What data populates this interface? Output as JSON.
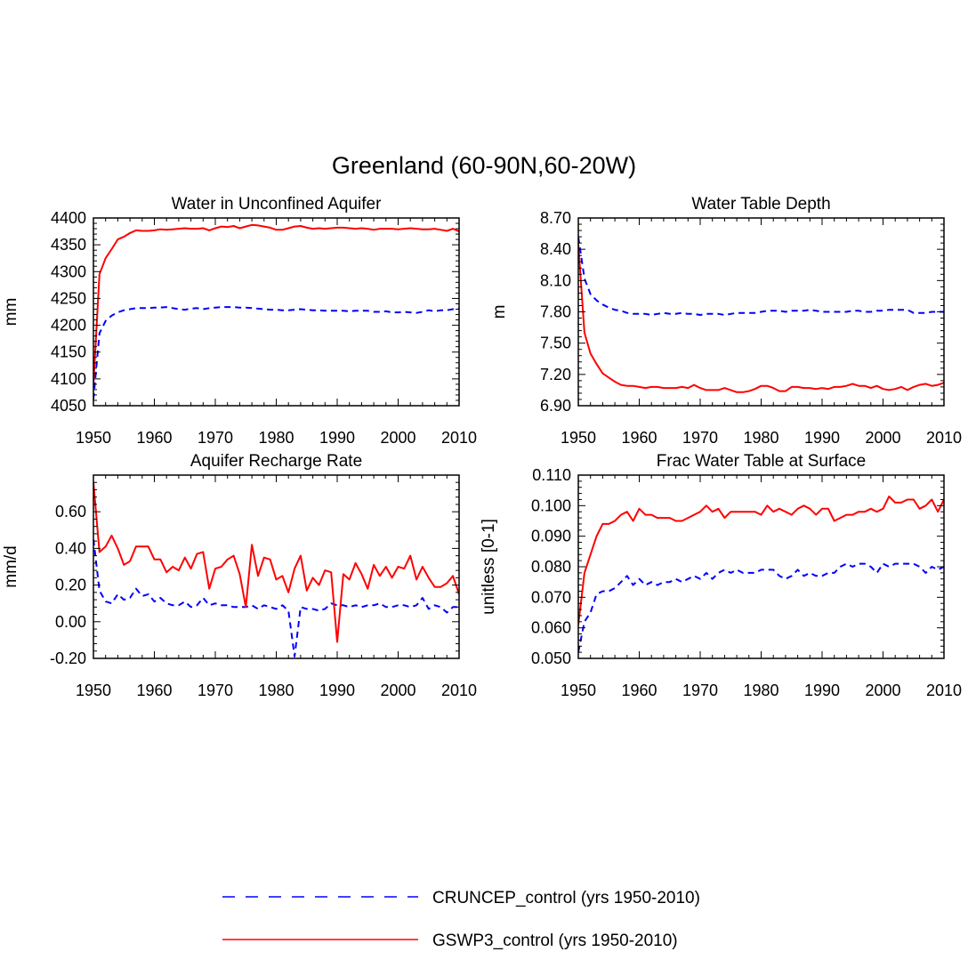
{
  "figure": {
    "title": "Greenland (60-90N,60-20W)"
  },
  "legend": {
    "placement": "bottom-center",
    "entries": [
      {
        "name": "CRUNCEP_control (yrs 1950-2010)",
        "color": "#0000ff",
        "style": "dashed"
      },
      {
        "name": "GSWP3_control (yrs 1950-2010)",
        "color": "#ff0000",
        "style": "solid"
      }
    ]
  },
  "chart_data": [
    {
      "type": "line",
      "title": "Water in Unconfined Aquifer",
      "xlabel": "",
      "ylabel": "mm",
      "xlim": [
        1950,
        2010
      ],
      "ylim": [
        4050,
        4400
      ],
      "xticks": [
        1950,
        1960,
        1970,
        1980,
        1990,
        2000,
        2010
      ],
      "yticks": [
        4050,
        4100,
        4150,
        4200,
        4250,
        4300,
        4350,
        4400
      ],
      "ytick_labels": [
        "4050",
        "4100",
        "4150",
        "4200",
        "4250",
        "4300",
        "4350",
        "4400"
      ],
      "series": [
        {
          "name": "CRUNCEP_control (yrs 1950-2010)",
          "color": "#0000ff",
          "style": "dashed",
          "values": [
            4062,
            4185,
            4208,
            4218,
            4224,
            4228,
            4230,
            4232,
            4232,
            4232,
            4233,
            4233,
            4234,
            4232,
            4230,
            4229,
            4231,
            4232,
            4230,
            4232,
            4233,
            4234,
            4234,
            4234,
            4233,
            4233,
            4232,
            4231,
            4230,
            4229,
            4229,
            4228,
            4228,
            4229,
            4230,
            4229,
            4228,
            4228,
            4227,
            4227,
            4227,
            4227,
            4226,
            4227,
            4227,
            4227,
            4225,
            4225,
            4226,
            4224,
            4224,
            4225,
            4224,
            4223,
            4225,
            4228,
            4226,
            4228,
            4228,
            4230,
            4231
          ]
        },
        {
          "name": "GSWP3_control (yrs 1950-2010)",
          "color": "#ff0000",
          "style": "solid",
          "values": [
            4090,
            4295,
            4325,
            4342,
            4360,
            4365,
            4372,
            4377,
            4376,
            4376,
            4377,
            4379,
            4378,
            4379,
            4380,
            4381,
            4380,
            4380,
            4381,
            4377,
            4381,
            4384,
            4383,
            4385,
            4381,
            4384,
            4387,
            4386,
            4384,
            4382,
            4378,
            4378,
            4381,
            4384,
            4385,
            4382,
            4380,
            4381,
            4380,
            4381,
            4382,
            4382,
            4381,
            4380,
            4381,
            4380,
            4378,
            4380,
            4380,
            4380,
            4379,
            4380,
            4381,
            4380,
            4379,
            4379,
            4380,
            4378,
            4376,
            4380,
            4375
          ]
        }
      ]
    },
    {
      "type": "line",
      "title": "Water Table Depth",
      "xlabel": "",
      "ylabel": "m",
      "xlim": [
        1950,
        2010
      ],
      "ylim": [
        6.9,
        8.7
      ],
      "xticks": [
        1950,
        1960,
        1970,
        1980,
        1990,
        2000,
        2010
      ],
      "yticks": [
        6.9,
        7.2,
        7.5,
        7.8,
        8.1,
        8.4,
        8.7
      ],
      "ytick_labels": [
        "6.90",
        "7.20",
        "7.50",
        "7.80",
        "8.10",
        "8.40",
        "8.70"
      ],
      "series": [
        {
          "name": "CRUNCEP_control (yrs 1950-2010)",
          "color": "#0000ff",
          "style": "dashed",
          "values": [
            8.52,
            8.12,
            7.97,
            7.91,
            7.87,
            7.84,
            7.82,
            7.81,
            7.79,
            7.78,
            7.78,
            7.78,
            7.77,
            7.78,
            7.79,
            7.78,
            7.78,
            7.79,
            7.78,
            7.78,
            7.77,
            7.78,
            7.78,
            7.78,
            7.77,
            7.78,
            7.79,
            7.79,
            7.79,
            7.79,
            7.8,
            7.81,
            7.81,
            7.81,
            7.8,
            7.81,
            7.81,
            7.81,
            7.82,
            7.81,
            7.8,
            7.8,
            7.8,
            7.8,
            7.8,
            7.81,
            7.81,
            7.8,
            7.8,
            7.81,
            7.81,
            7.82,
            7.82,
            7.82,
            7.82,
            7.79,
            7.79,
            7.79,
            7.8,
            7.8,
            7.8
          ]
        },
        {
          "name": "GSWP3_control (yrs 1950-2010)",
          "color": "#ff0000",
          "style": "solid",
          "values": [
            8.45,
            7.6,
            7.4,
            7.3,
            7.21,
            7.17,
            7.13,
            7.1,
            7.09,
            7.09,
            7.08,
            7.07,
            7.08,
            7.08,
            7.07,
            7.07,
            7.07,
            7.08,
            7.07,
            7.1,
            7.07,
            7.05,
            7.05,
            7.05,
            7.07,
            7.05,
            7.03,
            7.03,
            7.04,
            7.06,
            7.09,
            7.09,
            7.07,
            7.04,
            7.04,
            7.08,
            7.08,
            7.07,
            7.07,
            7.06,
            7.07,
            7.06,
            7.08,
            7.08,
            7.09,
            7.11,
            7.09,
            7.09,
            7.07,
            7.09,
            7.06,
            7.05,
            7.06,
            7.08,
            7.05,
            7.08,
            7.1,
            7.11,
            7.09,
            7.1,
            7.12
          ]
        }
      ]
    },
    {
      "type": "line",
      "title": "Aquifer Recharge Rate",
      "xlabel": "",
      "ylabel": "mm/d",
      "xlim": [
        1950,
        2010
      ],
      "ylim": [
        -0.2,
        0.8
      ],
      "xticks": [
        1950,
        1960,
        1970,
        1980,
        1990,
        2000,
        2010
      ],
      "yticks": [
        -0.2,
        0.0,
        0.2,
        0.4,
        0.6
      ],
      "ytick_labels": [
        "-0.20",
        "0.00",
        "0.20",
        "0.40",
        "0.60"
      ],
      "series": [
        {
          "name": "CRUNCEP_control (yrs 1950-2010)",
          "color": "#0000ff",
          "style": "dashed",
          "values": [
            0.45,
            0.17,
            0.11,
            0.1,
            0.15,
            0.12,
            0.13,
            0.18,
            0.14,
            0.15,
            0.11,
            0.13,
            0.1,
            0.09,
            0.09,
            0.11,
            0.08,
            0.09,
            0.13,
            0.09,
            0.1,
            0.09,
            0.09,
            0.08,
            0.08,
            0.08,
            0.09,
            0.07,
            0.09,
            0.08,
            0.07,
            0.09,
            0.06,
            -0.19,
            0.08,
            0.07,
            0.07,
            0.06,
            0.07,
            0.1,
            0.09,
            0.09,
            0.08,
            0.09,
            0.08,
            0.09,
            0.09,
            0.1,
            0.08,
            0.08,
            0.09,
            0.09,
            0.08,
            0.09,
            0.13,
            0.07,
            0.09,
            0.08,
            0.05,
            0.08,
            0.08
          ]
        },
        {
          "name": "GSWP3_control (yrs 1950-2010)",
          "color": "#ff0000",
          "style": "solid",
          "values": [
            0.76,
            0.38,
            0.41,
            0.47,
            0.4,
            0.31,
            0.33,
            0.41,
            0.41,
            0.41,
            0.34,
            0.34,
            0.27,
            0.3,
            0.28,
            0.35,
            0.29,
            0.37,
            0.38,
            0.18,
            0.29,
            0.3,
            0.34,
            0.36,
            0.26,
            0.08,
            0.42,
            0.25,
            0.35,
            0.34,
            0.23,
            0.25,
            0.16,
            0.29,
            0.36,
            0.17,
            0.24,
            0.2,
            0.28,
            0.27,
            -0.11,
            0.26,
            0.23,
            0.32,
            0.26,
            0.18,
            0.31,
            0.25,
            0.3,
            0.24,
            0.3,
            0.29,
            0.36,
            0.23,
            0.3,
            0.24,
            0.19,
            0.19,
            0.21,
            0.25,
            0.15
          ]
        }
      ]
    },
    {
      "type": "line",
      "title": "Frac Water Table at Surface",
      "xlabel": "",
      "ylabel": "unitless [0-1]",
      "xlim": [
        1950,
        2010
      ],
      "ylim": [
        0.05,
        0.11
      ],
      "xticks": [
        1950,
        1960,
        1970,
        1980,
        1990,
        2000,
        2010
      ],
      "yticks": [
        0.05,
        0.06,
        0.07,
        0.08,
        0.09,
        0.1,
        0.11
      ],
      "ytick_labels": [
        "0.050",
        "0.060",
        "0.070",
        "0.080",
        "0.090",
        "0.100",
        "0.110"
      ],
      "series": [
        {
          "name": "CRUNCEP_control (yrs 1950-2010)",
          "color": "#0000ff",
          "style": "dashed",
          "values": [
            0.052,
            0.062,
            0.065,
            0.071,
            0.072,
            0.072,
            0.073,
            0.075,
            0.077,
            0.074,
            0.076,
            0.074,
            0.075,
            0.074,
            0.075,
            0.075,
            0.076,
            0.075,
            0.076,
            0.077,
            0.076,
            0.078,
            0.076,
            0.078,
            0.079,
            0.078,
            0.079,
            0.078,
            0.078,
            0.078,
            0.079,
            0.079,
            0.079,
            0.077,
            0.076,
            0.077,
            0.079,
            0.077,
            0.078,
            0.077,
            0.077,
            0.078,
            0.078,
            0.08,
            0.081,
            0.08,
            0.081,
            0.081,
            0.08,
            0.078,
            0.081,
            0.08,
            0.081,
            0.081,
            0.081,
            0.081,
            0.08,
            0.078,
            0.08,
            0.079,
            0.08
          ]
        },
        {
          "name": "GSWP3_control (yrs 1950-2010)",
          "color": "#ff0000",
          "style": "solid",
          "values": [
            0.061,
            0.078,
            0.084,
            0.09,
            0.094,
            0.094,
            0.095,
            0.097,
            0.098,
            0.095,
            0.099,
            0.097,
            0.097,
            0.096,
            0.096,
            0.096,
            0.095,
            0.095,
            0.096,
            0.097,
            0.098,
            0.1,
            0.098,
            0.099,
            0.096,
            0.098,
            0.098,
            0.098,
            0.098,
            0.098,
            0.097,
            0.1,
            0.098,
            0.099,
            0.098,
            0.097,
            0.099,
            0.1,
            0.099,
            0.097,
            0.099,
            0.099,
            0.095,
            0.096,
            0.097,
            0.097,
            0.098,
            0.098,
            0.099,
            0.098,
            0.099,
            0.103,
            0.101,
            0.101,
            0.102,
            0.102,
            0.099,
            0.1,
            0.102,
            0.098,
            0.102
          ]
        }
      ]
    }
  ]
}
